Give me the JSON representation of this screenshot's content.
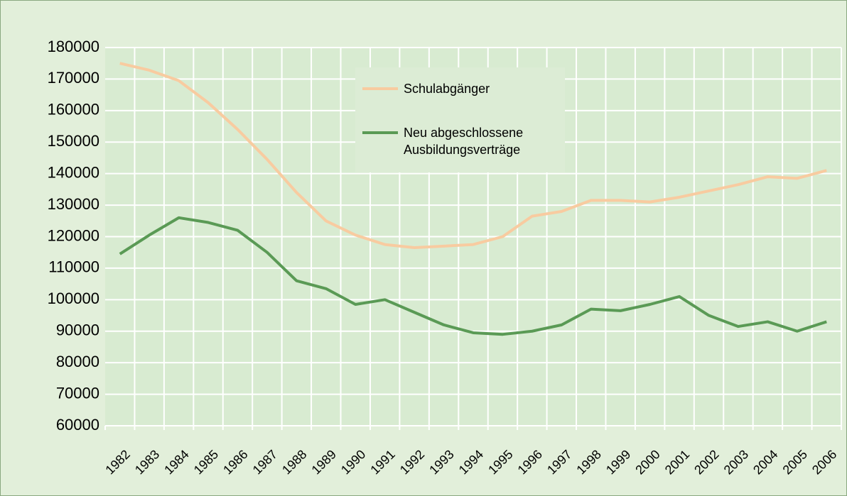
{
  "chart_data": {
    "type": "line",
    "categories": [
      "1982",
      "1983",
      "1984",
      "1985",
      "1986",
      "1987",
      "1988",
      "1989",
      "1990",
      "1991",
      "1992",
      "1993",
      "1994",
      "1995",
      "1996",
      "1997",
      "1998",
      "1999",
      "2000",
      "2001",
      "2002",
      "2003",
      "2004",
      "2005",
      "2006"
    ],
    "series": [
      {
        "name": "Schulabgänger",
        "color": "#f8cba0",
        "values": [
          175000,
          172800,
          169500,
          162500,
          154000,
          144500,
          134000,
          125000,
          120500,
          117500,
          116500,
          117000,
          117500,
          120000,
          126500,
          128000,
          131500,
          131500,
          131000,
          132500,
          134500,
          136500,
          139000,
          138500,
          141000
        ]
      },
      {
        "name": "Neu abgeschlossene Ausbildungsverträge",
        "color": "#5a9a55",
        "values": [
          114500,
          120500,
          126000,
          124500,
          122000,
          115000,
          106000,
          103500,
          98500,
          100000,
          96000,
          92000,
          89500,
          89000,
          90000,
          92000,
          97000,
          96500,
          98500,
          101000,
          95000,
          91500,
          93000,
          90000,
          93000
        ]
      }
    ],
    "ylim": [
      60000,
      180000
    ],
    "yticks": [
      60000,
      70000,
      80000,
      90000,
      100000,
      110000,
      120000,
      130000,
      140000,
      150000,
      160000,
      170000,
      180000
    ],
    "grid": true
  }
}
